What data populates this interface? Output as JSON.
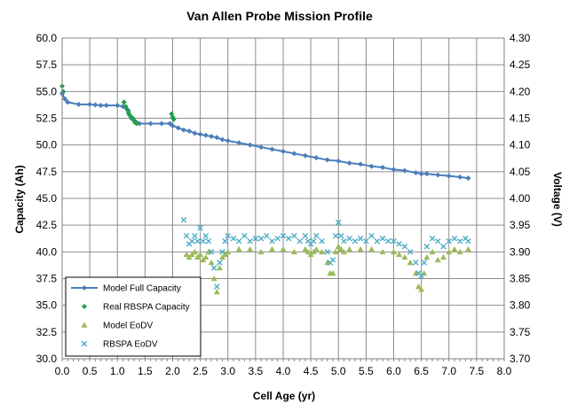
{
  "chart_data": {
    "type": "scatter",
    "title": "Van Allen Probe Mission Profile",
    "xlabel": "Cell Age (yr)",
    "ylabel": "Capacity (Ah)",
    "y2label": "Voltage (V)",
    "xlim": [
      0.0,
      8.0
    ],
    "ylim": [
      30.0,
      60.0
    ],
    "y2lim": [
      3.7,
      4.3
    ],
    "x_ticks": [
      "0.0",
      "0.5",
      "1.0",
      "1.5",
      "2.0",
      "2.5",
      "3.0",
      "3.5",
      "4.0",
      "4.5",
      "5.0",
      "5.5",
      "6.0",
      "6.5",
      "7.0",
      "7.5",
      "8.0"
    ],
    "y_ticks": [
      "30.0",
      "32.5",
      "35.0",
      "37.5",
      "40.0",
      "42.5",
      "45.0",
      "47.5",
      "50.0",
      "52.5",
      "55.0",
      "57.5",
      "60.0"
    ],
    "y2_ticks": [
      "3.70",
      "3.75",
      "3.80",
      "3.85",
      "3.90",
      "3.95",
      "4.00",
      "4.05",
      "4.10",
      "4.15",
      "4.20",
      "4.25",
      "4.30"
    ],
    "grid": true,
    "legend_position": "bottom-left",
    "series": [
      {
        "name": "Model Full Capacity",
        "axis": "left",
        "style": "line-marker",
        "color": "#4a7ebb",
        "x": [
          0.0,
          0.05,
          0.1,
          0.3,
          0.5,
          0.6,
          0.7,
          0.8,
          1.0,
          1.1,
          1.15,
          1.2,
          1.22,
          1.25,
          1.3,
          1.35,
          1.4,
          1.6,
          1.8,
          1.95,
          2.0,
          2.1,
          2.2,
          2.3,
          2.4,
          2.5,
          2.6,
          2.7,
          2.8,
          2.9,
          3.0,
          3.2,
          3.4,
          3.6,
          3.8,
          4.0,
          4.2,
          4.4,
          4.6,
          4.8,
          5.0,
          5.2,
          5.4,
          5.6,
          5.8,
          6.0,
          6.2,
          6.4,
          6.5,
          6.6,
          6.8,
          7.0,
          7.2,
          7.35
        ],
        "y": [
          54.8,
          54.3,
          54.0,
          53.8,
          53.8,
          53.75,
          53.7,
          53.7,
          53.7,
          53.6,
          53.5,
          53.2,
          52.8,
          52.5,
          52.3,
          52.1,
          52.0,
          52.0,
          52.0,
          52.0,
          51.8,
          51.6,
          51.4,
          51.3,
          51.1,
          51.0,
          50.9,
          50.8,
          50.7,
          50.5,
          50.4,
          50.2,
          50.0,
          49.8,
          49.6,
          49.4,
          49.2,
          49.0,
          48.8,
          48.6,
          48.5,
          48.3,
          48.2,
          48.0,
          47.9,
          47.7,
          47.6,
          47.4,
          47.3,
          47.3,
          47.2,
          47.1,
          47.0,
          46.9
        ]
      },
      {
        "name": "Real RBSPA Capacity",
        "axis": "left",
        "style": "marker",
        "color": "#1e9e4c",
        "x": [
          0.0,
          0.02,
          1.12,
          1.15,
          1.18,
          1.2,
          1.22,
          1.25,
          1.28,
          1.3,
          1.32,
          1.35,
          1.98,
          2.0,
          2.02
        ],
        "y": [
          55.5,
          55.0,
          54.0,
          53.6,
          53.3,
          53.0,
          52.8,
          52.6,
          52.5,
          52.3,
          52.1,
          52.0,
          52.9,
          52.6,
          52.4
        ]
      },
      {
        "name": "Model EoDV",
        "axis": "right",
        "style": "marker",
        "color": "#9bbb59",
        "x": [
          2.25,
          2.3,
          2.35,
          2.4,
          2.45,
          2.5,
          2.55,
          2.6,
          2.65,
          2.7,
          2.75,
          2.8,
          2.85,
          2.9,
          2.95,
          3.0,
          3.2,
          3.4,
          3.6,
          3.8,
          4.0,
          4.2,
          4.4,
          4.45,
          4.5,
          4.55,
          4.6,
          4.7,
          4.8,
          4.85,
          4.9,
          4.95,
          5.0,
          5.05,
          5.1,
          5.2,
          5.4,
          5.6,
          5.8,
          6.0,
          6.1,
          6.2,
          6.3,
          6.4,
          6.45,
          6.5,
          6.55,
          6.6,
          6.7,
          6.8,
          6.9,
          7.0,
          7.1,
          7.2,
          7.35
        ],
        "y": [
          3.895,
          3.89,
          3.895,
          3.9,
          3.89,
          3.895,
          3.885,
          3.89,
          3.9,
          3.88,
          3.85,
          3.825,
          3.87,
          3.89,
          3.895,
          3.9,
          3.905,
          3.905,
          3.9,
          3.905,
          3.905,
          3.9,
          3.905,
          3.9,
          3.895,
          3.9,
          3.905,
          3.9,
          3.88,
          3.86,
          3.86,
          3.9,
          3.91,
          3.905,
          3.9,
          3.905,
          3.905,
          3.905,
          3.9,
          3.9,
          3.895,
          3.89,
          3.88,
          3.86,
          3.835,
          3.83,
          3.86,
          3.89,
          3.9,
          3.885,
          3.89,
          3.9,
          3.905,
          3.9,
          3.905
        ]
      },
      {
        "name": "RBSPA EoDV",
        "axis": "right",
        "style": "marker",
        "color": "#4bacc6",
        "x": [
          2.2,
          2.25,
          2.3,
          2.35,
          2.4,
          2.45,
          2.5,
          2.55,
          2.6,
          2.65,
          2.7,
          2.75,
          2.8,
          2.85,
          2.9,
          2.95,
          3.0,
          3.1,
          3.2,
          3.3,
          3.4,
          3.5,
          3.6,
          3.7,
          3.8,
          3.9,
          4.0,
          4.1,
          4.2,
          4.3,
          4.4,
          4.45,
          4.5,
          4.55,
          4.6,
          4.7,
          4.8,
          4.85,
          4.9,
          4.95,
          5.0,
          5.05,
          5.1,
          5.2,
          5.3,
          5.4,
          5.5,
          5.6,
          5.7,
          5.8,
          5.9,
          6.0,
          6.1,
          6.2,
          6.3,
          6.4,
          6.45,
          6.5,
          6.55,
          6.6,
          6.7,
          6.8,
          6.9,
          7.0,
          7.1,
          7.2,
          7.3,
          7.35
        ],
        "y": [
          3.96,
          3.93,
          3.915,
          3.92,
          3.93,
          3.92,
          3.945,
          3.92,
          3.93,
          3.92,
          3.9,
          3.87,
          3.835,
          3.88,
          3.9,
          3.92,
          3.93,
          3.925,
          3.92,
          3.93,
          3.92,
          3.925,
          3.925,
          3.93,
          3.92,
          3.925,
          3.93,
          3.925,
          3.93,
          3.92,
          3.93,
          3.92,
          3.915,
          3.92,
          3.93,
          3.92,
          3.9,
          3.88,
          3.885,
          3.93,
          3.955,
          3.93,
          3.92,
          3.925,
          3.92,
          3.925,
          3.92,
          3.93,
          3.92,
          3.925,
          3.92,
          3.92,
          3.915,
          3.91,
          3.9,
          3.88,
          3.86,
          3.855,
          3.88,
          3.91,
          3.925,
          3.92,
          3.91,
          3.92,
          3.925,
          3.92,
          3.925,
          3.92
        ]
      }
    ]
  }
}
